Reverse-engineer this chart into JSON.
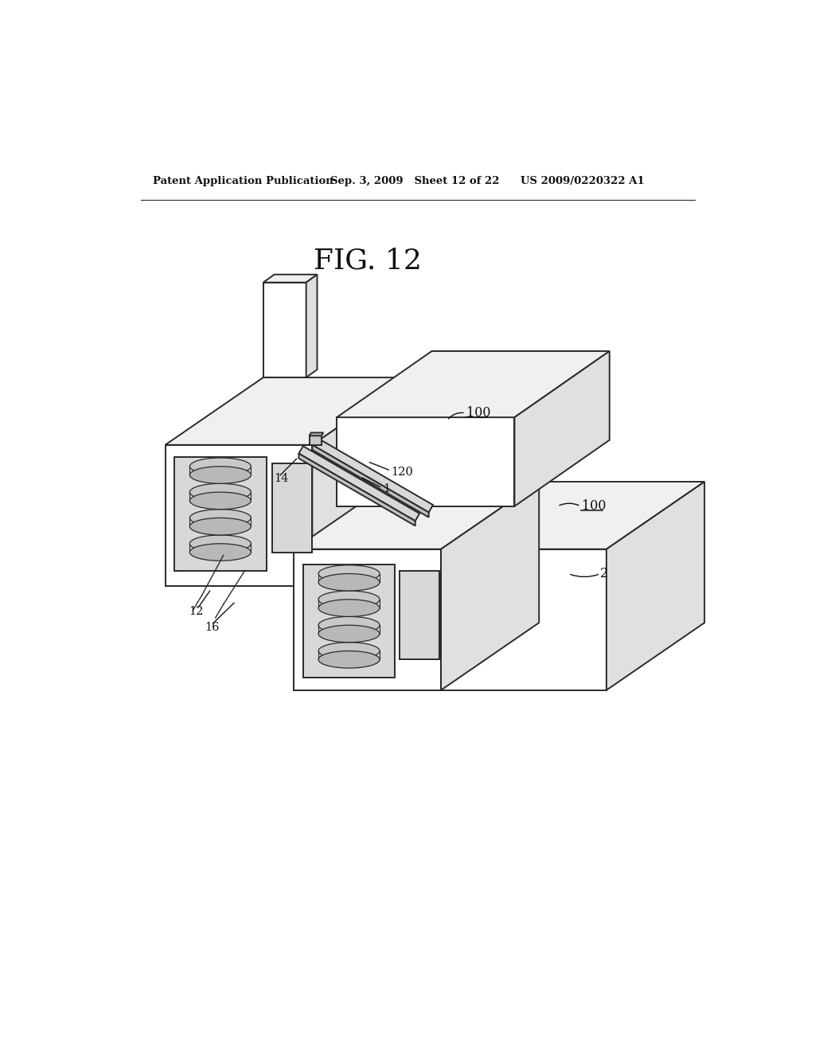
{
  "title": "FIG. 12",
  "header_left": "Patent Application Publication",
  "header_mid": "Sep. 3, 2009   Sheet 12 of 22",
  "header_right": "US 2009/0220322 A1",
  "bg_color": "#ffffff",
  "line_color": "#2a2a2a",
  "line_width": 1.4,
  "face_white": "#ffffff",
  "face_light": "#f0f0f0",
  "face_mid": "#e0e0e0",
  "face_dark": "#d0d0d0",
  "window_bg": "#d8d8d8",
  "cassette_top": "#c8c8c8",
  "cassette_side": "#b8b8b8"
}
